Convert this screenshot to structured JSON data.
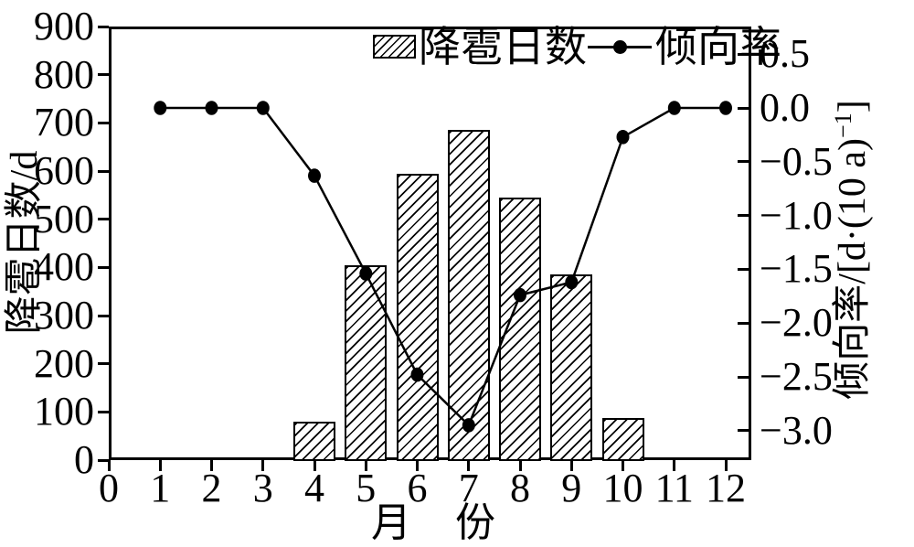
{
  "figure": {
    "legend": [
      {
        "label": "降雹日数",
        "symbol": "hatched-bar"
      },
      {
        "label": "倾向率",
        "symbol": "line-with-dot"
      }
    ],
    "x_axis": {
      "title": "月　份",
      "tick_labels": [
        "0",
        "1",
        "2",
        "3",
        "4",
        "5",
        "6",
        "7",
        "8",
        "9",
        "10",
        "11",
        "12"
      ],
      "tick_values": [
        0,
        1,
        2,
        3,
        4,
        5,
        6,
        7,
        8,
        9,
        10,
        11,
        12
      ]
    },
    "left_axis": {
      "title": "降雹日数/d",
      "tick_labels": [
        "0",
        "100",
        "200",
        "300",
        "400",
        "500",
        "600",
        "700",
        "800",
        "900"
      ],
      "tick_values": [
        0,
        100,
        200,
        300,
        400,
        500,
        600,
        700,
        800,
        900
      ]
    },
    "right_axis": {
      "title_pre": "倾向率/[d·(10 a)",
      "title_sup": "−1",
      "title_post": "]",
      "tick_labels": [
        "0.5",
        "0.0",
        "−0.5",
        "−1.0",
        "−1.5",
        "−2.0",
        "−2.5",
        "−3.0"
      ],
      "tick_values": [
        0.5,
        0.0,
        -0.5,
        -1.0,
        -1.5,
        -2.0,
        -2.5,
        -3.0
      ]
    },
    "colors": {
      "ink": "#000000",
      "background": "#ffffff"
    }
  },
  "chart_data": {
    "type": "bar+line",
    "categories": [
      1,
      2,
      3,
      4,
      5,
      6,
      7,
      8,
      9,
      10,
      11,
      12
    ],
    "series": [
      {
        "name": "降雹日数",
        "type": "bar",
        "axis": "left",
        "values": [
          0,
          0,
          0,
          80,
          405,
          595,
          685,
          545,
          385,
          88,
          0,
          0
        ]
      },
      {
        "name": "倾向率",
        "type": "line",
        "axis": "right",
        "values": [
          0.0,
          0.0,
          0.0,
          -0.63,
          -1.54,
          -2.48,
          -2.95,
          -1.74,
          -1.62,
          -0.27,
          0.0,
          0.0
        ]
      }
    ],
    "title": "",
    "xlabel": "月　份",
    "ylabel_left": "降雹日数/d",
    "ylabel_right": "倾向率/[d·(10 a)⁻¹]",
    "left_ylim": [
      0,
      900
    ],
    "right_ylim": [
      -3.27,
      0.76
    ],
    "xlim": [
      0,
      12.5
    ],
    "grid": false,
    "legend_position": "top-inside"
  }
}
